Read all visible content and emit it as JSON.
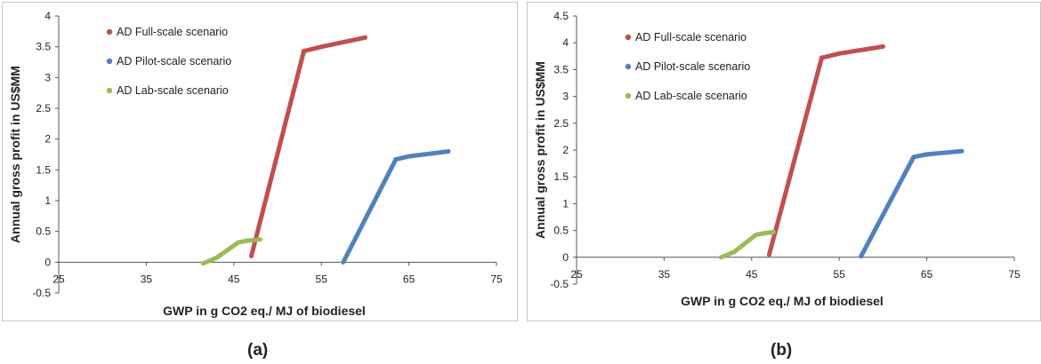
{
  "captions": {
    "a": "(a)",
    "b": "(b)"
  },
  "colors": {
    "full": "#c0504d",
    "pilot": "#4f81bd",
    "lab": "#9bbb59"
  },
  "chart_data": [
    {
      "type": "scatter",
      "panel": "(a)",
      "xlabel": "GWP in g CO2 eq./ MJ of biodiesel",
      "ylabel": "Annual gross profit in US$MM",
      "xlim": [
        25,
        75
      ],
      "ylim": [
        -0.5,
        4
      ],
      "xticks": [
        25,
        35,
        45,
        55,
        65,
        75
      ],
      "yticks": [
        -0.5,
        0,
        0.5,
        1,
        1.5,
        2,
        2.5,
        3,
        3.5,
        4
      ],
      "xtick_labels": [
        "25",
        "35",
        "45",
        "55",
        "65",
        "75"
      ],
      "ytick_labels": [
        "-0.5",
        "0",
        "0.5",
        "1",
        "1.5",
        "2",
        "2.5",
        "3",
        "3.5",
        "4"
      ],
      "legend_position": "top-left",
      "series": [
        {
          "name": "AD Full-scale scenario",
          "color": "#c0504d",
          "points": [
            [
              47.0,
              0.1
            ],
            [
              53.0,
              3.43
            ],
            [
              55.0,
              3.5
            ],
            [
              60.0,
              3.65
            ]
          ]
        },
        {
          "name": "AD Pilot-scale scenario",
          "color": "#4f81bd",
          "points": [
            [
              57.5,
              0.0
            ],
            [
              63.5,
              1.67
            ],
            [
              65.0,
              1.72
            ],
            [
              69.5,
              1.8
            ]
          ]
        },
        {
          "name": "AD Lab-scale scenario",
          "color": "#9bbb59",
          "points": [
            [
              41.5,
              -0.02
            ],
            [
              43.0,
              0.07
            ],
            [
              45.5,
              0.32
            ],
            [
              46.5,
              0.35
            ],
            [
              48.0,
              0.37
            ]
          ]
        }
      ]
    },
    {
      "type": "scatter",
      "panel": "(b)",
      "xlabel": "GWP in g CO2 eq./ MJ of biodiesel",
      "ylabel": "Annual gross profit in US$MM",
      "xlim": [
        25,
        75
      ],
      "ylim": [
        -0.5,
        4.5
      ],
      "xticks": [
        25,
        35,
        45,
        55,
        65,
        75
      ],
      "yticks": [
        -0.5,
        0,
        0.5,
        1,
        1.5,
        2,
        2.5,
        3,
        3.5,
        4,
        4.5
      ],
      "xtick_labels": [
        "25",
        "35",
        "45",
        "55",
        "65",
        "75"
      ],
      "ytick_labels": [
        "-0.5",
        "0",
        "0.5",
        "1",
        "1.5",
        "2",
        "2.5",
        "3",
        "3.5",
        "4",
        "4.5"
      ],
      "legend_position": "top-left",
      "series": [
        {
          "name": "AD Full-scale scenario",
          "color": "#c0504d",
          "points": [
            [
              47.0,
              0.05
            ],
            [
              53.0,
              3.72
            ],
            [
              55.0,
              3.8
            ],
            [
              60.0,
              3.93
            ]
          ]
        },
        {
          "name": "AD Pilot-scale scenario",
          "color": "#4f81bd",
          "points": [
            [
              57.5,
              0.02
            ],
            [
              63.5,
              1.87
            ],
            [
              65.0,
              1.92
            ],
            [
              69.0,
              1.98
            ]
          ]
        },
        {
          "name": "AD Lab-scale scenario",
          "color": "#9bbb59",
          "points": [
            [
              41.5,
              0.0
            ],
            [
              43.0,
              0.1
            ],
            [
              45.5,
              0.42
            ],
            [
              46.5,
              0.45
            ],
            [
              47.5,
              0.47
            ]
          ]
        }
      ]
    }
  ]
}
